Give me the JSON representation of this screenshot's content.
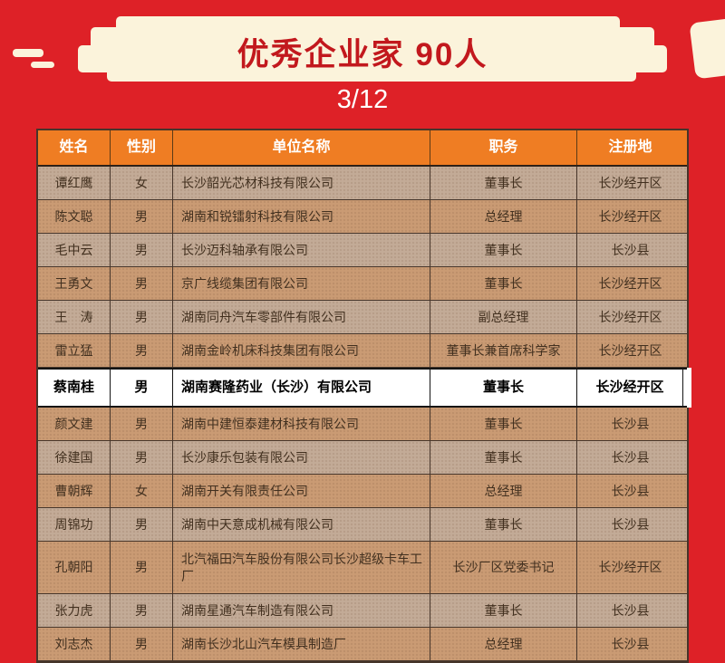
{
  "page": {
    "title": "优秀企业家 90人",
    "page_indicator": "3/12"
  },
  "colors": {
    "page-bg": "#DE2127",
    "banner-bg": "#FBF3DB",
    "title-color": "#C2181D",
    "header-bg": "#EF7D23",
    "header-text": "#FFFFFF",
    "row-light": "#C3AB97",
    "row-dark": "#CA9B74",
    "row-highlight": "#FFFFFF",
    "border-color": "#46352A",
    "cell-text": "#42301F"
  },
  "table": {
    "headers": [
      "姓名",
      "性别",
      "单位名称",
      "职务",
      "注册地"
    ],
    "rows": [
      {
        "name": "谭红鹰",
        "gender": "女",
        "company": "长沙韶光芯材科技有限公司",
        "position": "董事长",
        "location": "长沙经开区",
        "highlight": false
      },
      {
        "name": "陈文聪",
        "gender": "男",
        "company": "湖南和锐镭射科技有限公司",
        "position": "总经理",
        "location": "长沙经开区",
        "highlight": false
      },
      {
        "name": "毛中云",
        "gender": "男",
        "company": "长沙迈科轴承有限公司",
        "position": "董事长",
        "location": "长沙县",
        "highlight": false
      },
      {
        "name": "王勇文",
        "gender": "男",
        "company": "京广线缆集团有限公司",
        "position": "董事长",
        "location": "长沙经开区",
        "highlight": false
      },
      {
        "name": "王　涛",
        "gender": "男",
        "company": "湖南同舟汽车零部件有限公司",
        "position": "副总经理",
        "location": "长沙经开区",
        "highlight": false
      },
      {
        "name": "雷立猛",
        "gender": "男",
        "company": "湖南金岭机床科技集团有限公司",
        "position": "董事长兼首席科学家",
        "location": "长沙经开区",
        "highlight": false
      },
      {
        "name": "蔡南桂",
        "gender": "男",
        "company": "湖南赛隆药业（长沙）有限公司",
        "position": "董事长",
        "location": "长沙经开区",
        "highlight": true
      },
      {
        "name": "颜文建",
        "gender": "男",
        "company": "湖南中建恒泰建材科技有限公司",
        "position": "董事长",
        "location": "长沙县",
        "highlight": false
      },
      {
        "name": "徐建国",
        "gender": "男",
        "company": "长沙康乐包装有限公司",
        "position": "董事长",
        "location": "长沙县",
        "highlight": false
      },
      {
        "name": "曹朝辉",
        "gender": "女",
        "company": "湖南开关有限责任公司",
        "position": "总经理",
        "location": "长沙县",
        "highlight": false
      },
      {
        "name": "周锦功",
        "gender": "男",
        "company": "湖南中天意成机械有限公司",
        "position": "董事长",
        "location": "长沙县",
        "highlight": false
      },
      {
        "name": "孔朝阳",
        "gender": "男",
        "company": "北汽福田汽车股份有限公司长沙超级卡车工厂",
        "position": "长沙厂区党委书记",
        "location": "长沙经开区",
        "highlight": false
      },
      {
        "name": "张力虎",
        "gender": "男",
        "company": "湖南星通汽车制造有限公司",
        "position": "董事长",
        "location": "长沙县",
        "highlight": false
      },
      {
        "name": "刘志杰",
        "gender": "男",
        "company": "湖南长沙北山汽车模具制造厂",
        "position": "总经理",
        "location": "长沙县",
        "highlight": false
      }
    ]
  }
}
